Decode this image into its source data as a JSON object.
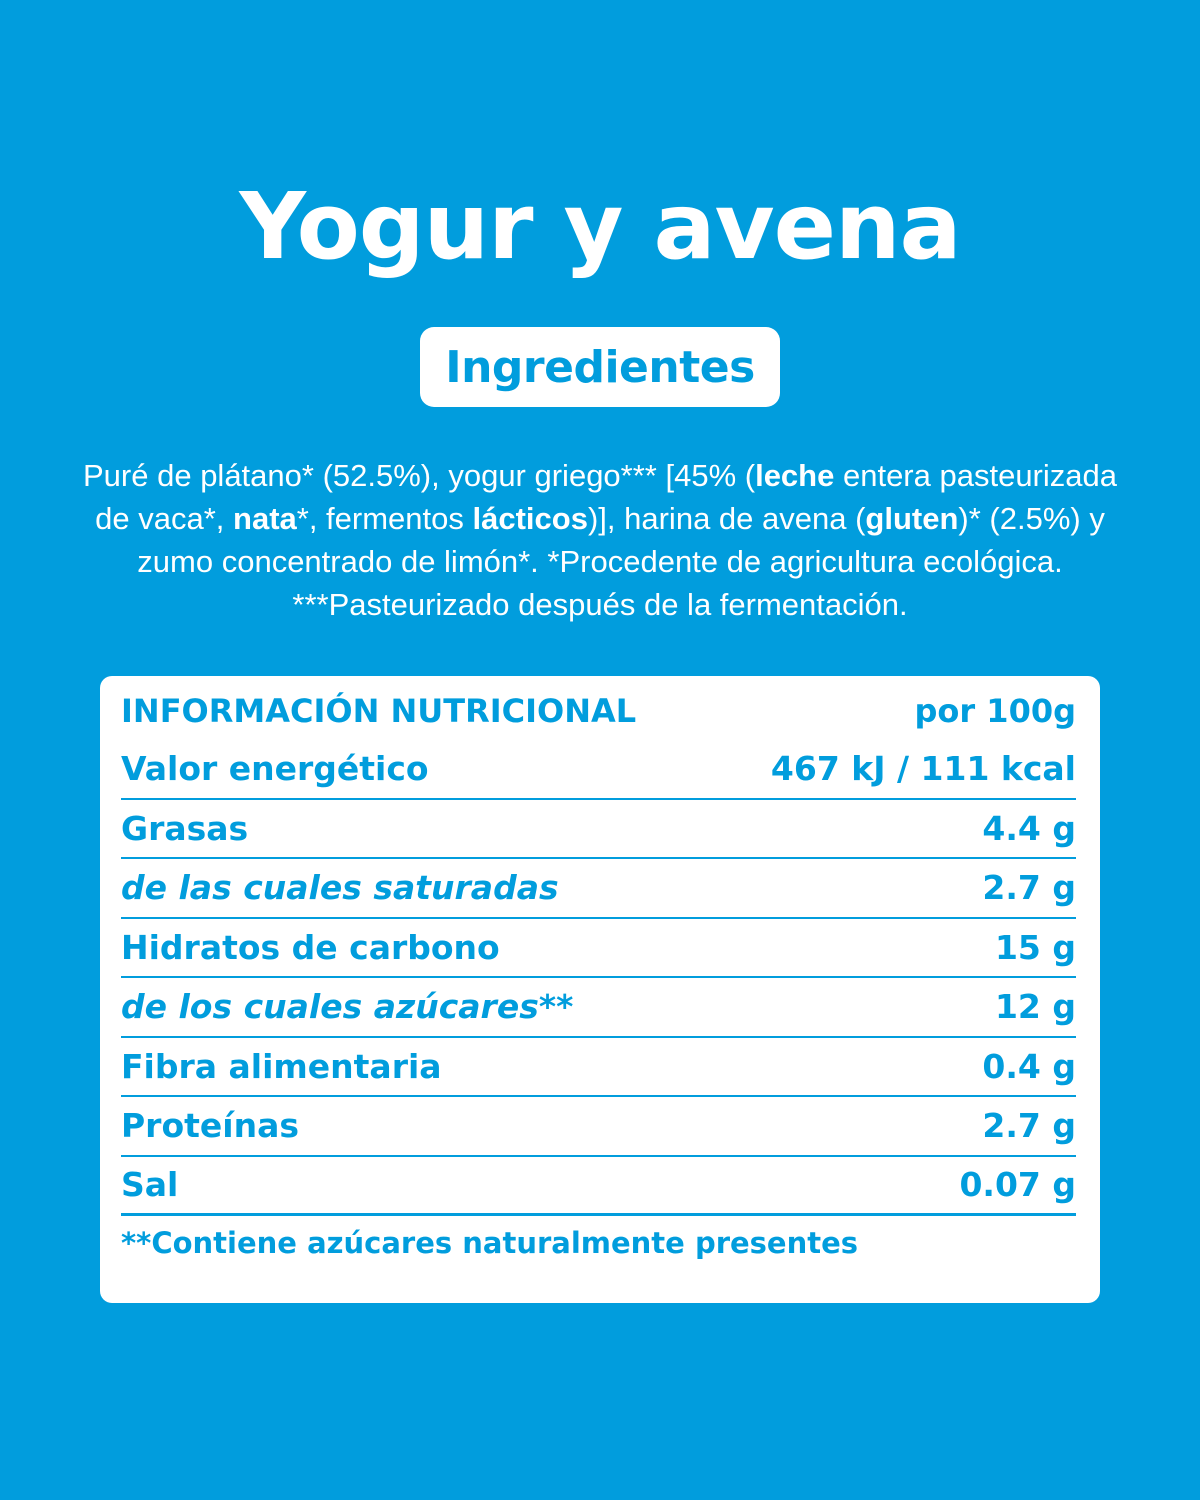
{
  "title": "Yogur y avena",
  "ingredients_badge": "Ingredientes",
  "ingredients_text": [
    {
      "t": "Puré de plátano* (52.5%), yogur griego*** [45% (",
      "b": false
    },
    {
      "t": "leche",
      "b": true
    },
    {
      "t": " entera pasteurizada de vaca*, ",
      "b": false
    },
    {
      "t": "nata",
      "b": true
    },
    {
      "t": "*, fermentos ",
      "b": false
    },
    {
      "t": "lácticos",
      "b": true
    },
    {
      "t": ")], harina de avena (",
      "b": false
    },
    {
      "t": "gluten",
      "b": true
    },
    {
      "t": ")* (2.5%) y zumo concentrado de limón*. *Procedente de agricultura ecológica. ***Pasteurizado después de la fermentación.",
      "b": false
    }
  ],
  "nutrition": {
    "header_label": "INFORMACIÓN NUTRICIONAL",
    "header_unit": "por 100g",
    "rows": [
      {
        "label": "Valor energético",
        "value": "467 kJ / 111 kcal",
        "sub": false
      },
      {
        "label": "Grasas",
        "value": "4.4 g",
        "sub": false
      },
      {
        "label": "de las cuales saturadas",
        "value": "2.7 g",
        "sub": true
      },
      {
        "label": "Hidratos de carbono",
        "value": "15 g",
        "sub": false
      },
      {
        "label": "de los cuales azúcares**",
        "value": "12 g",
        "sub": true
      },
      {
        "label": "Fibra alimentaria",
        "value": "0.4 g",
        "sub": false
      },
      {
        "label": "Proteínas",
        "value": "2.7 g",
        "sub": false
      },
      {
        "label": "Sal",
        "value": "0.07 g",
        "sub": false
      }
    ],
    "footnote": "**Contiene azúcares naturalmente presentes"
  },
  "colors": {
    "background": "#019ddd",
    "panel": "#ffffff",
    "text_on_panel": "#019ddd"
  }
}
